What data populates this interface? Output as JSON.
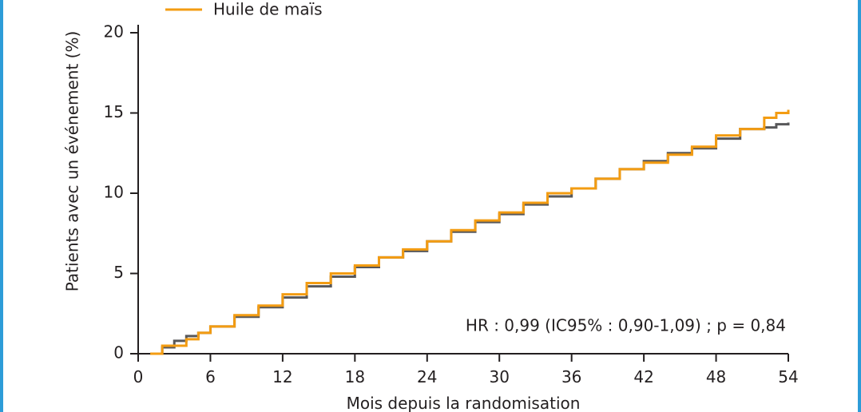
{
  "chart_data": {
    "type": "step",
    "y_label": "Patients avec un événement (%)",
    "x_label": "Mois depuis la randomisation",
    "annotation": "HR : 0,99 (IC95% : 0,90-1,09) ; p = 0,84",
    "x": [
      1,
      2,
      3,
      4,
      5,
      6,
      8,
      10,
      12,
      14,
      16,
      18,
      20,
      22,
      24,
      26,
      28,
      30,
      32,
      34,
      36,
      38,
      40,
      42,
      44,
      46,
      48,
      50,
      52,
      53,
      54
    ],
    "series": [
      {
        "color": "#58585a",
        "values": [
          0,
          0.4,
          0.8,
          1.1,
          1.3,
          1.7,
          2.3,
          2.9,
          3.5,
          4.2,
          4.8,
          5.4,
          6.0,
          6.4,
          7.0,
          7.6,
          8.2,
          8.7,
          9.3,
          9.8,
          10.3,
          10.9,
          11.5,
          12.0,
          12.5,
          12.8,
          13.4,
          14.0,
          14.1,
          14.3,
          14.4
        ]
      },
      {
        "name": "Huile de maïs",
        "color": "#f39c12",
        "values": [
          0,
          0.5,
          0.5,
          0.9,
          1.3,
          1.7,
          2.4,
          3.0,
          3.7,
          4.4,
          5.0,
          5.5,
          6.0,
          6.5,
          7.0,
          7.7,
          8.3,
          8.8,
          9.4,
          10.0,
          10.3,
          10.9,
          11.5,
          11.9,
          12.4,
          12.9,
          13.6,
          14.0,
          14.7,
          15.0,
          15.2
        ]
      }
    ],
    "xlim": [
      0,
      54
    ],
    "xticks": [
      0,
      6,
      12,
      18,
      24,
      30,
      36,
      42,
      48,
      54
    ],
    "ylim": [
      0,
      20
    ],
    "yticks": [
      0,
      5,
      10,
      15,
      20
    ]
  }
}
